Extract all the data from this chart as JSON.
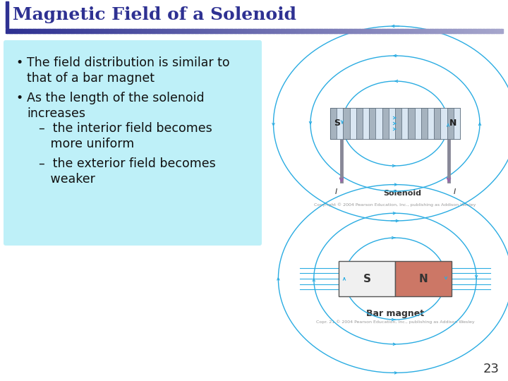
{
  "title": "Magnetic Field of a Solenoid",
  "title_color": "#2E3192",
  "title_fontsize": 18,
  "bg_color": "#FFFFFF",
  "slide_number": "23",
  "bullet_box_color": "#BEF0F8",
  "field_line_color": "#2AACE2",
  "solenoid_coil_fill": "#A8C8D8",
  "solenoid_coil_edge": "#607080",
  "magnet_s_color": "#F0F0F0",
  "magnet_n_color": "#CC7766",
  "magnet_border_color": "#555555",
  "header_grad_left": "#2E3192",
  "header_grad_right": "#AAAACC",
  "copyright_text": "Copyright © 2004 Pearson Education, Inc., publishing as Addison Wesley",
  "copyright_text2": "Copr. 21 © 2004 Pearson Education, Inc., publishing as Addison Wesley",
  "bullet1_line1": "The field distribution is similar to",
  "bullet1_line2": "that of a bar magnet",
  "bullet2_line1": "As the length of the solenoid",
  "bullet2_line2": "increases",
  "sub1_line1": "–  the interior field becomes",
  "sub1_line2": "   more uniform",
  "sub2_line1": "–  the exterior field becomes",
  "sub2_line2": "   weaker"
}
